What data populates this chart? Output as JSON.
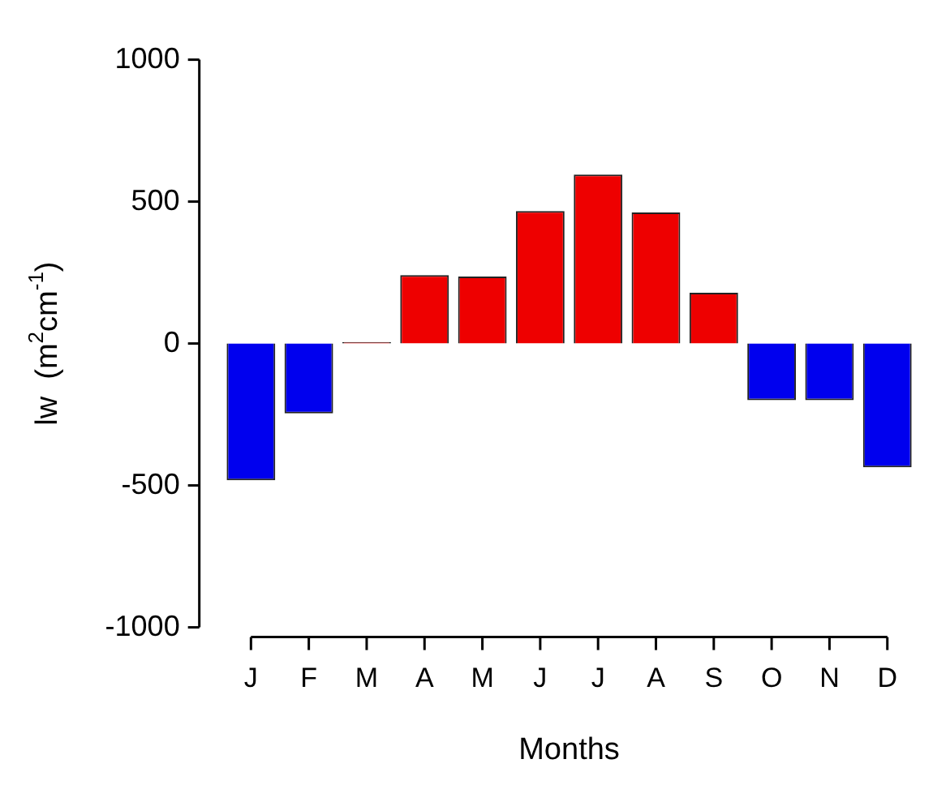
{
  "chart_data": {
    "type": "bar",
    "xlabel": "Months",
    "ylabel": "lw  (m$^{2}$cm$^{-1}$)",
    "categories": [
      "J",
      "F",
      "M",
      "A",
      "M",
      "J",
      "J",
      "A",
      "S",
      "O",
      "N",
      "D"
    ],
    "values": [
      -482,
      -246,
      5,
      241,
      236,
      467,
      595,
      462,
      179,
      -200,
      -200,
      -436
    ],
    "colors": [
      "#0000ee",
      "#0000ee",
      "#ee0000",
      "#ee0000",
      "#ee0000",
      "#ee0000",
      "#ee0000",
      "#ee0000",
      "#ee0000",
      "#0000ee",
      "#0000ee",
      "#0000ee"
    ],
    "ylim": [
      -1000,
      1000
    ],
    "yticks": [
      -1000,
      -500,
      0,
      500,
      1000
    ],
    "grid": false,
    "legend": false
  }
}
